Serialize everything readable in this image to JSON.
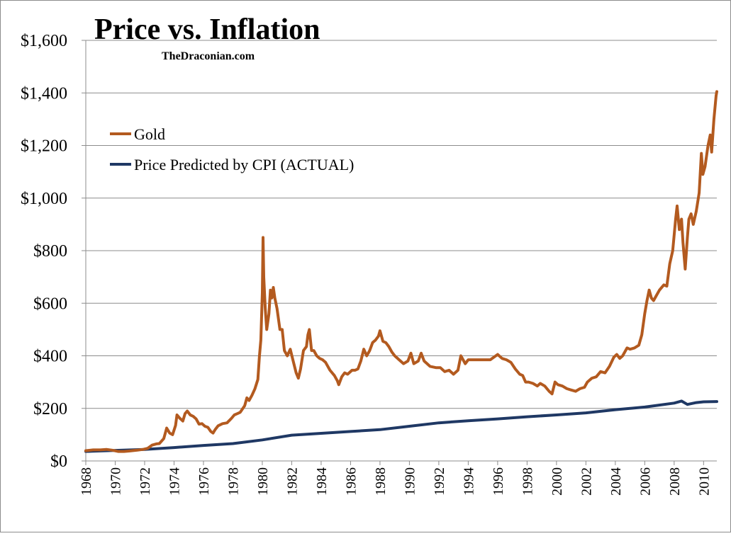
{
  "chart_data": {
    "type": "line",
    "title": "Price vs. Inflation",
    "subtitle": "TheDraconian.com",
    "xlabel": "",
    "ylabel": "",
    "xlim": [
      1968,
      2010.9
    ],
    "ylim": [
      0,
      1600
    ],
    "y_ticks": [
      0,
      200,
      400,
      600,
      800,
      1000,
      1200,
      1400,
      1600
    ],
    "y_tick_labels": [
      "$0",
      "$200",
      "$400",
      "$600",
      "$800",
      "$1,000",
      "$1,200",
      "$1,400",
      "$1,600"
    ],
    "x_ticks": [
      1968,
      1970,
      1972,
      1974,
      1976,
      1978,
      1980,
      1982,
      1984,
      1986,
      1988,
      1990,
      1992,
      1994,
      1996,
      1998,
      2000,
      2002,
      2004,
      2006,
      2008,
      2010
    ],
    "x_tick_labels": [
      "1968",
      "1970",
      "1972",
      "1974",
      "1976",
      "1978",
      "1980",
      "1982",
      "1984",
      "1986",
      "1988",
      "1990",
      "1992",
      "1994",
      "1996",
      "1998",
      "2000",
      "2002",
      "2004",
      "2006",
      "2008",
      "2010"
    ],
    "grid": {
      "horizontal": true,
      "vertical": false
    },
    "legend": {
      "placement": "top-left"
    },
    "series": [
      {
        "name": "Gold",
        "color": "#b35a1f",
        "points": [
          [
            1968.0,
            39
          ],
          [
            1968.5,
            42
          ],
          [
            1969.0,
            42
          ],
          [
            1969.4,
            44
          ],
          [
            1969.8,
            41
          ],
          [
            1970.2,
            36
          ],
          [
            1970.6,
            36
          ],
          [
            1971.0,
            38
          ],
          [
            1971.5,
            41
          ],
          [
            1971.9,
            44
          ],
          [
            1972.2,
            48
          ],
          [
            1972.5,
            60
          ],
          [
            1972.8,
            65
          ],
          [
            1973.0,
            66
          ],
          [
            1973.3,
            85
          ],
          [
            1973.5,
            125
          ],
          [
            1973.7,
            106
          ],
          [
            1973.9,
            100
          ],
          [
            1974.1,
            135
          ],
          [
            1974.2,
            175
          ],
          [
            1974.4,
            162
          ],
          [
            1974.6,
            152
          ],
          [
            1974.75,
            180
          ],
          [
            1974.9,
            190
          ],
          [
            1975.1,
            175
          ],
          [
            1975.3,
            170
          ],
          [
            1975.5,
            160
          ],
          [
            1975.7,
            140
          ],
          [
            1975.9,
            142
          ],
          [
            1976.1,
            132
          ],
          [
            1976.3,
            128
          ],
          [
            1976.5,
            112
          ],
          [
            1976.65,
            106
          ],
          [
            1976.8,
            120
          ],
          [
            1977.0,
            134
          ],
          [
            1977.3,
            142
          ],
          [
            1977.6,
            145
          ],
          [
            1977.9,
            162
          ],
          [
            1978.1,
            175
          ],
          [
            1978.3,
            180
          ],
          [
            1978.5,
            185
          ],
          [
            1978.8,
            210
          ],
          [
            1978.95,
            240
          ],
          [
            1979.1,
            230
          ],
          [
            1979.3,
            250
          ],
          [
            1979.5,
            275
          ],
          [
            1979.7,
            310
          ],
          [
            1979.8,
            395
          ],
          [
            1979.9,
            460
          ],
          [
            1980.0,
            640
          ],
          [
            1980.05,
            850
          ],
          [
            1980.1,
            700
          ],
          [
            1980.2,
            580
          ],
          [
            1980.3,
            500
          ],
          [
            1980.45,
            560
          ],
          [
            1980.55,
            650
          ],
          [
            1980.65,
            620
          ],
          [
            1980.75,
            660
          ],
          [
            1980.85,
            620
          ],
          [
            1981.0,
            580
          ],
          [
            1981.2,
            500
          ],
          [
            1981.35,
            500
          ],
          [
            1981.5,
            420
          ],
          [
            1981.7,
            400
          ],
          [
            1981.9,
            425
          ],
          [
            1982.1,
            380
          ],
          [
            1982.3,
            335
          ],
          [
            1982.45,
            315
          ],
          [
            1982.6,
            350
          ],
          [
            1982.8,
            420
          ],
          [
            1983.0,
            435
          ],
          [
            1983.1,
            480
          ],
          [
            1983.2,
            500
          ],
          [
            1983.35,
            420
          ],
          [
            1983.5,
            420
          ],
          [
            1983.7,
            400
          ],
          [
            1983.9,
            390
          ],
          [
            1984.1,
            385
          ],
          [
            1984.3,
            375
          ],
          [
            1984.6,
            345
          ],
          [
            1984.9,
            325
          ],
          [
            1985.1,
            305
          ],
          [
            1985.2,
            290
          ],
          [
            1985.4,
            320
          ],
          [
            1985.6,
            335
          ],
          [
            1985.8,
            330
          ],
          [
            1986.1,
            345
          ],
          [
            1986.3,
            345
          ],
          [
            1986.5,
            350
          ],
          [
            1986.7,
            380
          ],
          [
            1986.9,
            425
          ],
          [
            1987.1,
            400
          ],
          [
            1987.3,
            420
          ],
          [
            1987.5,
            450
          ],
          [
            1987.7,
            460
          ],
          [
            1987.9,
            475
          ],
          [
            1988.0,
            495
          ],
          [
            1988.2,
            455
          ],
          [
            1988.4,
            450
          ],
          [
            1988.6,
            435
          ],
          [
            1988.8,
            415
          ],
          [
            1989.0,
            400
          ],
          [
            1989.3,
            385
          ],
          [
            1989.6,
            370
          ],
          [
            1989.9,
            380
          ],
          [
            1990.1,
            410
          ],
          [
            1990.3,
            370
          ],
          [
            1990.6,
            380
          ],
          [
            1990.8,
            410
          ],
          [
            1991.0,
            380
          ],
          [
            1991.4,
            360
          ],
          [
            1991.8,
            355
          ],
          [
            1992.1,
            355
          ],
          [
            1992.4,
            340
          ],
          [
            1992.7,
            345
          ],
          [
            1993.0,
            330
          ],
          [
            1993.3,
            345
          ],
          [
            1993.5,
            400
          ],
          [
            1993.8,
            370
          ],
          [
            1994.0,
            385
          ],
          [
            1994.5,
            385
          ],
          [
            1995.0,
            385
          ],
          [
            1995.5,
            385
          ],
          [
            1996.0,
            405
          ],
          [
            1996.3,
            390
          ],
          [
            1996.6,
            385
          ],
          [
            1996.9,
            375
          ],
          [
            1997.2,
            350
          ],
          [
            1997.5,
            330
          ],
          [
            1997.7,
            325
          ],
          [
            1997.9,
            300
          ],
          [
            1998.1,
            300
          ],
          [
            1998.4,
            295
          ],
          [
            1998.7,
            285
          ],
          [
            1998.9,
            295
          ],
          [
            1999.2,
            285
          ],
          [
            1999.5,
            265
          ],
          [
            1999.7,
            255
          ],
          [
            1999.9,
            300
          ],
          [
            2000.1,
            290
          ],
          [
            2000.4,
            285
          ],
          [
            2000.7,
            275
          ],
          [
            2001.0,
            270
          ],
          [
            2001.3,
            265
          ],
          [
            2001.6,
            275
          ],
          [
            2001.9,
            280
          ],
          [
            2002.1,
            300
          ],
          [
            2002.4,
            315
          ],
          [
            2002.7,
            320
          ],
          [
            2003.0,
            340
          ],
          [
            2003.3,
            335
          ],
          [
            2003.6,
            360
          ],
          [
            2003.9,
            395
          ],
          [
            2004.1,
            405
          ],
          [
            2004.3,
            390
          ],
          [
            2004.5,
            400
          ],
          [
            2004.8,
            430
          ],
          [
            2005.0,
            425
          ],
          [
            2005.3,
            430
          ],
          [
            2005.6,
            440
          ],
          [
            2005.8,
            480
          ],
          [
            2006.0,
            560
          ],
          [
            2006.15,
            610
          ],
          [
            2006.3,
            650
          ],
          [
            2006.45,
            620
          ],
          [
            2006.6,
            610
          ],
          [
            2006.8,
            630
          ],
          [
            2007.0,
            650
          ],
          [
            2007.3,
            670
          ],
          [
            2007.5,
            665
          ],
          [
            2007.7,
            750
          ],
          [
            2007.9,
            800
          ],
          [
            2008.1,
            920
          ],
          [
            2008.2,
            970
          ],
          [
            2008.35,
            880
          ],
          [
            2008.5,
            920
          ],
          [
            2008.6,
            830
          ],
          [
            2008.75,
            730
          ],
          [
            2008.9,
            850
          ],
          [
            2009.0,
            920
          ],
          [
            2009.15,
            940
          ],
          [
            2009.3,
            900
          ],
          [
            2009.5,
            950
          ],
          [
            2009.7,
            1020
          ],
          [
            2009.85,
            1170
          ],
          [
            2009.95,
            1090
          ],
          [
            2010.1,
            1120
          ],
          [
            2010.3,
            1200
          ],
          [
            2010.45,
            1240
          ],
          [
            2010.55,
            1175
          ],
          [
            2010.7,
            1300
          ],
          [
            2010.85,
            1390
          ],
          [
            2010.9,
            1405
          ]
        ]
      },
      {
        "name": "Price Predicted by CPI (ACTUAL)",
        "color": "#1f3864",
        "points": [
          [
            1968,
            36
          ],
          [
            1970,
            40
          ],
          [
            1972,
            44
          ],
          [
            1974,
            51
          ],
          [
            1976,
            59
          ],
          [
            1978,
            66
          ],
          [
            1980,
            80
          ],
          [
            1982,
            98
          ],
          [
            1984,
            105
          ],
          [
            1986,
            112
          ],
          [
            1988,
            119
          ],
          [
            1990,
            132
          ],
          [
            1992,
            145
          ],
          [
            1994,
            153
          ],
          [
            1996,
            160
          ],
          [
            1998,
            168
          ],
          [
            2000,
            175
          ],
          [
            2002,
            183
          ],
          [
            2004,
            195
          ],
          [
            2006,
            205
          ],
          [
            2008,
            220
          ],
          [
            2008.5,
            228
          ],
          [
            2008.9,
            215
          ],
          [
            2009.5,
            222
          ],
          [
            2010,
            225
          ],
          [
            2010.9,
            226
          ]
        ]
      }
    ]
  }
}
